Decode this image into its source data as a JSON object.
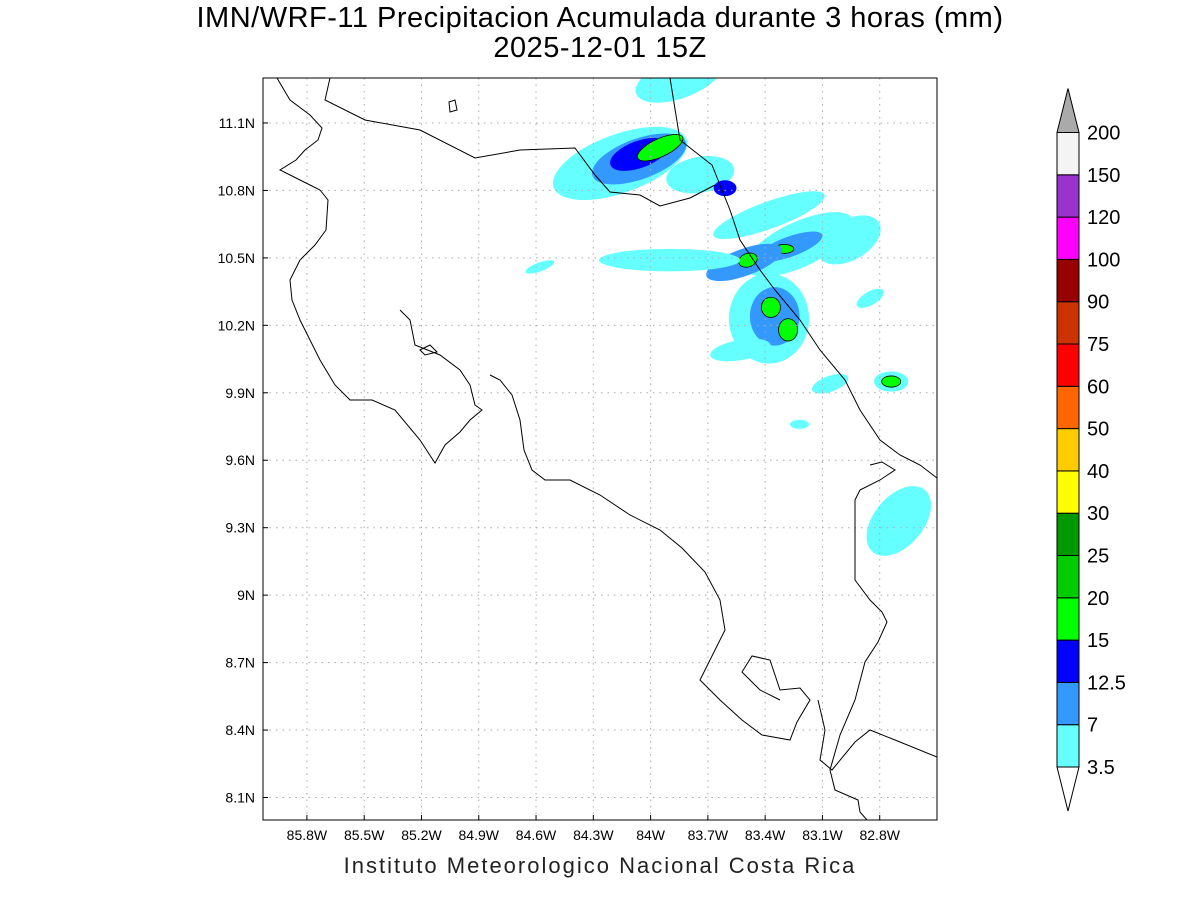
{
  "title": {
    "line1": "IMN/WRF-11 Precipitacion Acumulada durante 3 horas (mm)",
    "line2": "2025-12-01 15Z"
  },
  "footer": "Instituto Meteorologico Nacional Costa Rica",
  "chart_data": {
    "type": "heatmap",
    "title": "IMN/WRF-11 Precipitacion Acumulada durante 3 horas (mm)",
    "subtitle": "2025-12-01 15Z",
    "units": "mm",
    "lon_range": [
      -86.03,
      -82.5
    ],
    "lat_range": [
      8.0,
      11.3
    ],
    "lon_ticks": [
      "85.8W",
      "85.5W",
      "85.2W",
      "84.9W",
      "84.6W",
      "84.3W",
      "84W",
      "83.7W",
      "83.4W",
      "83.1W",
      "82.8W"
    ],
    "lon_values": [
      -85.8,
      -85.5,
      -85.2,
      -84.9,
      -84.6,
      -84.3,
      -84.0,
      -83.7,
      -83.4,
      -83.1,
      -82.8
    ],
    "lat_ticks": [
      "11.1N",
      "10.8N",
      "10.5N",
      "10.2N",
      "9.9N",
      "9.6N",
      "9.3N",
      "9N",
      "8.7N",
      "8.4N",
      "8.1N"
    ],
    "lat_values": [
      11.1,
      10.8,
      10.5,
      10.2,
      9.9,
      9.6,
      9.3,
      9.0,
      8.7,
      8.4,
      8.1
    ],
    "grid": true,
    "colorbar": {
      "labels": [
        "3.5",
        "7",
        "12.5",
        "15",
        "20",
        "25",
        "30",
        "40",
        "50",
        "60",
        "75",
        "90",
        "100",
        "120",
        "150",
        "200"
      ],
      "colors": [
        "#66ffff",
        "#3399ff",
        "#0000ff",
        "#00ff00",
        "#00cc00",
        "#009900",
        "#ffff00",
        "#ffcc00",
        "#ff6600",
        "#ff0000",
        "#cc3300",
        "#990000",
        "#ff00ff",
        "#9933cc",
        "#f4f4f4"
      ],
      "under_color": "#ffffff",
      "over_color": "#aaaaaa"
    },
    "precip_cells": [
      [
        -84.16,
        10.92,
        0.37,
        0.13,
        -20,
        0
      ],
      [
        -84.06,
        10.94,
        0.26,
        0.09,
        -20,
        1
      ],
      [
        -84.06,
        10.96,
        0.16,
        0.06,
        -20,
        2
      ],
      [
        -83.95,
        10.99,
        0.13,
        0.04,
        -25,
        3
      ],
      [
        -83.74,
        10.87,
        0.18,
        0.08,
        -10,
        0
      ],
      [
        -83.61,
        10.81,
        0.06,
        0.035,
        0,
        2
      ],
      [
        -83.38,
        10.69,
        0.31,
        0.06,
        -20,
        0
      ],
      [
        -83.22,
        10.56,
        0.31,
        0.1,
        -25,
        0
      ],
      [
        -83.27,
        10.55,
        0.18,
        0.045,
        -20,
        1
      ],
      [
        -83.3,
        10.54,
        0.05,
        0.02,
        0,
        3
      ],
      [
        -83.51,
        10.48,
        0.21,
        0.06,
        -20,
        1
      ],
      [
        -83.49,
        10.49,
        0.05,
        0.03,
        -20,
        3
      ],
      [
        -83.9,
        10.49,
        0.37,
        0.05,
        0,
        0
      ],
      [
        -83.38,
        10.23,
        0.21,
        0.2,
        0,
        0
      ],
      [
        -83.35,
        10.24,
        0.13,
        0.13,
        0,
        1
      ],
      [
        -83.37,
        10.28,
        0.05,
        0.045,
        0,
        3
      ],
      [
        -83.28,
        10.18,
        0.05,
        0.05,
        0,
        3
      ],
      [
        -82.96,
        10.58,
        0.18,
        0.09,
        -30,
        0
      ],
      [
        -82.74,
        9.95,
        0.09,
        0.045,
        0,
        0
      ],
      [
        -82.74,
        9.95,
        0.05,
        0.025,
        0,
        3
      ],
      [
        -82.7,
        9.33,
        0.13,
        0.18,
        40,
        0
      ],
      [
        -83.85,
        11.3,
        0.24,
        0.09,
        -20,
        0
      ],
      [
        -83.53,
        10.09,
        0.16,
        0.045,
        -10,
        0
      ],
      [
        -83.06,
        9.94,
        0.1,
        0.035,
        -20,
        0
      ],
      [
        -82.85,
        10.32,
        0.08,
        0.03,
        -30,
        0
      ],
      [
        -83.22,
        9.76,
        0.05,
        0.02,
        0,
        0
      ],
      [
        -84.58,
        10.46,
        0.08,
        0.02,
        -20,
        0
      ]
    ]
  }
}
